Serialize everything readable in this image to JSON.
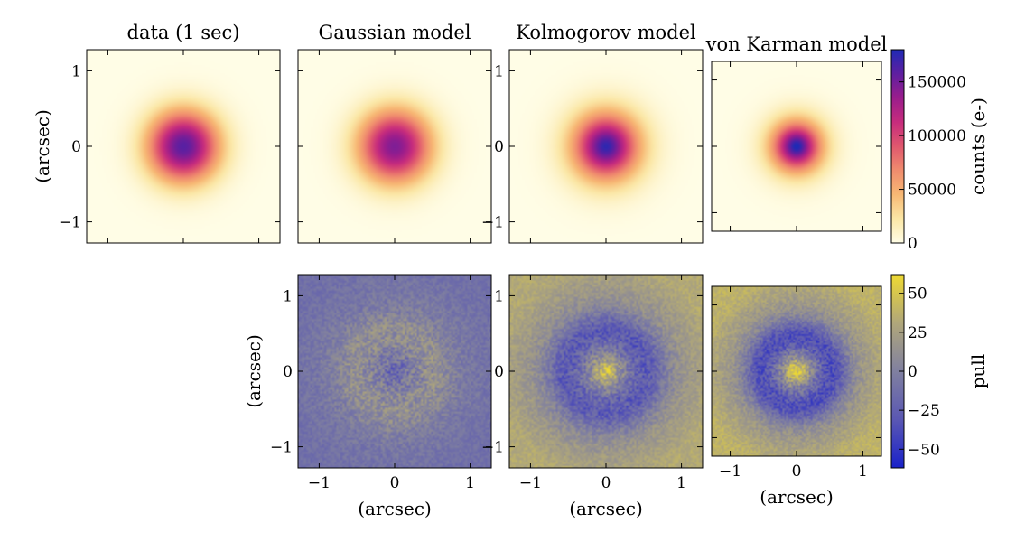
{
  "chart_data": {
    "type": "heatmap",
    "panels": [
      {
        "id": "data",
        "row": 0,
        "col": 0,
        "title": "data (1 sec)",
        "kind": "counts",
        "profile": "gaussian",
        "peak": 160000,
        "sigma": 0.32,
        "ylabel": "(arcsec)",
        "xlabel": "",
        "show_yticks": true,
        "show_xticks": false
      },
      {
        "id": "gauss",
        "row": 0,
        "col": 1,
        "title": "Gaussian model",
        "kind": "counts",
        "profile": "gaussian",
        "peak": 145000,
        "sigma": 0.33,
        "ylabel": "",
        "xlabel": "",
        "show_yticks": false,
        "show_xticks": false
      },
      {
        "id": "kolmo",
        "row": 0,
        "col": 2,
        "title": "Kolmogorov model",
        "kind": "counts",
        "profile": "kolmogorov",
        "peak": 175000,
        "sigma": 0.3,
        "ylabel": "",
        "xlabel": "",
        "show_yticks": true,
        "show_xticks": false
      },
      {
        "id": "vonk",
        "row": 0,
        "col": 3,
        "title": "von Karman model",
        "kind": "counts",
        "profile": "vonkarman",
        "peak": 185000,
        "sigma": 0.27,
        "ylabel": "",
        "xlabel": "",
        "show_yticks": false,
        "show_xticks": false
      },
      {
        "id": "gauss_pull",
        "row": 1,
        "col": 1,
        "title": "",
        "kind": "pull",
        "pull_center": -18,
        "pull_ring": 12,
        "pull_outer": -12,
        "ylabel": "(arcsec)",
        "xlabel": "(arcsec)",
        "show_yticks": true,
        "show_xticks": true
      },
      {
        "id": "kolmo_pull",
        "row": 1,
        "col": 2,
        "title": "",
        "kind": "pull",
        "pull_center": 45,
        "pull_ring": -28,
        "pull_outer": 32,
        "ylabel": "",
        "xlabel": "(arcsec)",
        "show_yticks": true,
        "show_xticks": true
      },
      {
        "id": "vonk_pull",
        "row": 1,
        "col": 3,
        "title": "",
        "kind": "pull",
        "pull_center": 55,
        "pull_ring": -35,
        "pull_outer": 38,
        "ylabel": "",
        "xlabel": "(arcsec)",
        "show_yticks": false,
        "show_xticks": true
      }
    ],
    "axis_range": [
      -1.28,
      1.28
    ],
    "x_ticks": [
      -1,
      0,
      1
    ],
    "y_ticks": [
      -1,
      0,
      1
    ],
    "x_tick_labels": [
      "−1",
      "0",
      "1"
    ],
    "y_tick_labels": [
      "−1",
      "0",
      "1"
    ],
    "colorbars": [
      {
        "id": "counts",
        "label": "counts (e-)",
        "range": [
          0,
          180000
        ],
        "ticks": [
          0,
          50000,
          100000,
          150000
        ],
        "tick_labels": [
          "0",
          "50000",
          "100000",
          "150000"
        ],
        "colormap": "plasma_r",
        "stops": [
          "#fffde6",
          "#fbe7a6",
          "#f7b874",
          "#f08c6e",
          "#e0586e",
          "#c72c7d",
          "#9a1d8c",
          "#5f1fa0",
          "#1f2ab5"
        ]
      },
      {
        "id": "pull",
        "label": "pull",
        "range": [
          -62,
          62
        ],
        "ticks": [
          -50,
          -25,
          0,
          25,
          50
        ],
        "tick_labels": [
          "−50",
          "−25",
          "0",
          "25",
          "50"
        ],
        "colormap": "diverging",
        "stops": [
          "#1a22c9",
          "#5a57b3",
          "#8080a0",
          "#b0a77a",
          "#eed932"
        ]
      }
    ]
  }
}
